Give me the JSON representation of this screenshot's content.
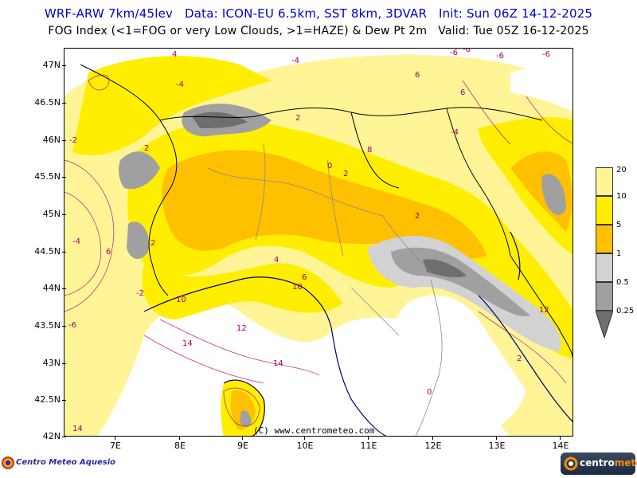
{
  "header": {
    "line1": "WRF-ARW 7km/45lev   Data: ICON-EU 6.5km, SST 8km, 3DVAR   Init: Sun 06Z 14-12-2025",
    "line2": "FOG Index (<1=FOG or very Low Clouds, >1=HAZE) & Dew Pt 2m   Valid: Tue 05Z 16-12-2025"
  },
  "axes": {
    "y_labels": [
      "47N",
      "46.5N",
      "46N",
      "45.5N",
      "45N",
      "44.5N",
      "44N",
      "43.5N",
      "43N",
      "42.5N",
      "42N"
    ],
    "x_labels": [
      "7E",
      "8E",
      "9E",
      "10E",
      "11E",
      "12E",
      "13E",
      "14E"
    ]
  },
  "legend": {
    "labels": [
      "20",
      "10",
      "5",
      "1",
      "0.5",
      "0.25"
    ],
    "colors": {
      "over_10": "#fff596",
      "5_10": "#ffee00",
      "1_5": "#ffc000",
      "0.5_1": "#d2d2d2",
      "0.25_0.5": "#a0a0a0",
      "under_0.25": "#6e6e6e"
    }
  },
  "dewpoint_labels": [
    "-6",
    "-4",
    "-2",
    "0",
    "2",
    "4",
    "6",
    "8",
    "10",
    "12",
    "14"
  ],
  "credit": "(C) www.centrometeo.com",
  "logos": {
    "left": "Centro Meteo Aquesio",
    "right_prefix": "centro",
    "right_suffix": "meteo"
  }
}
